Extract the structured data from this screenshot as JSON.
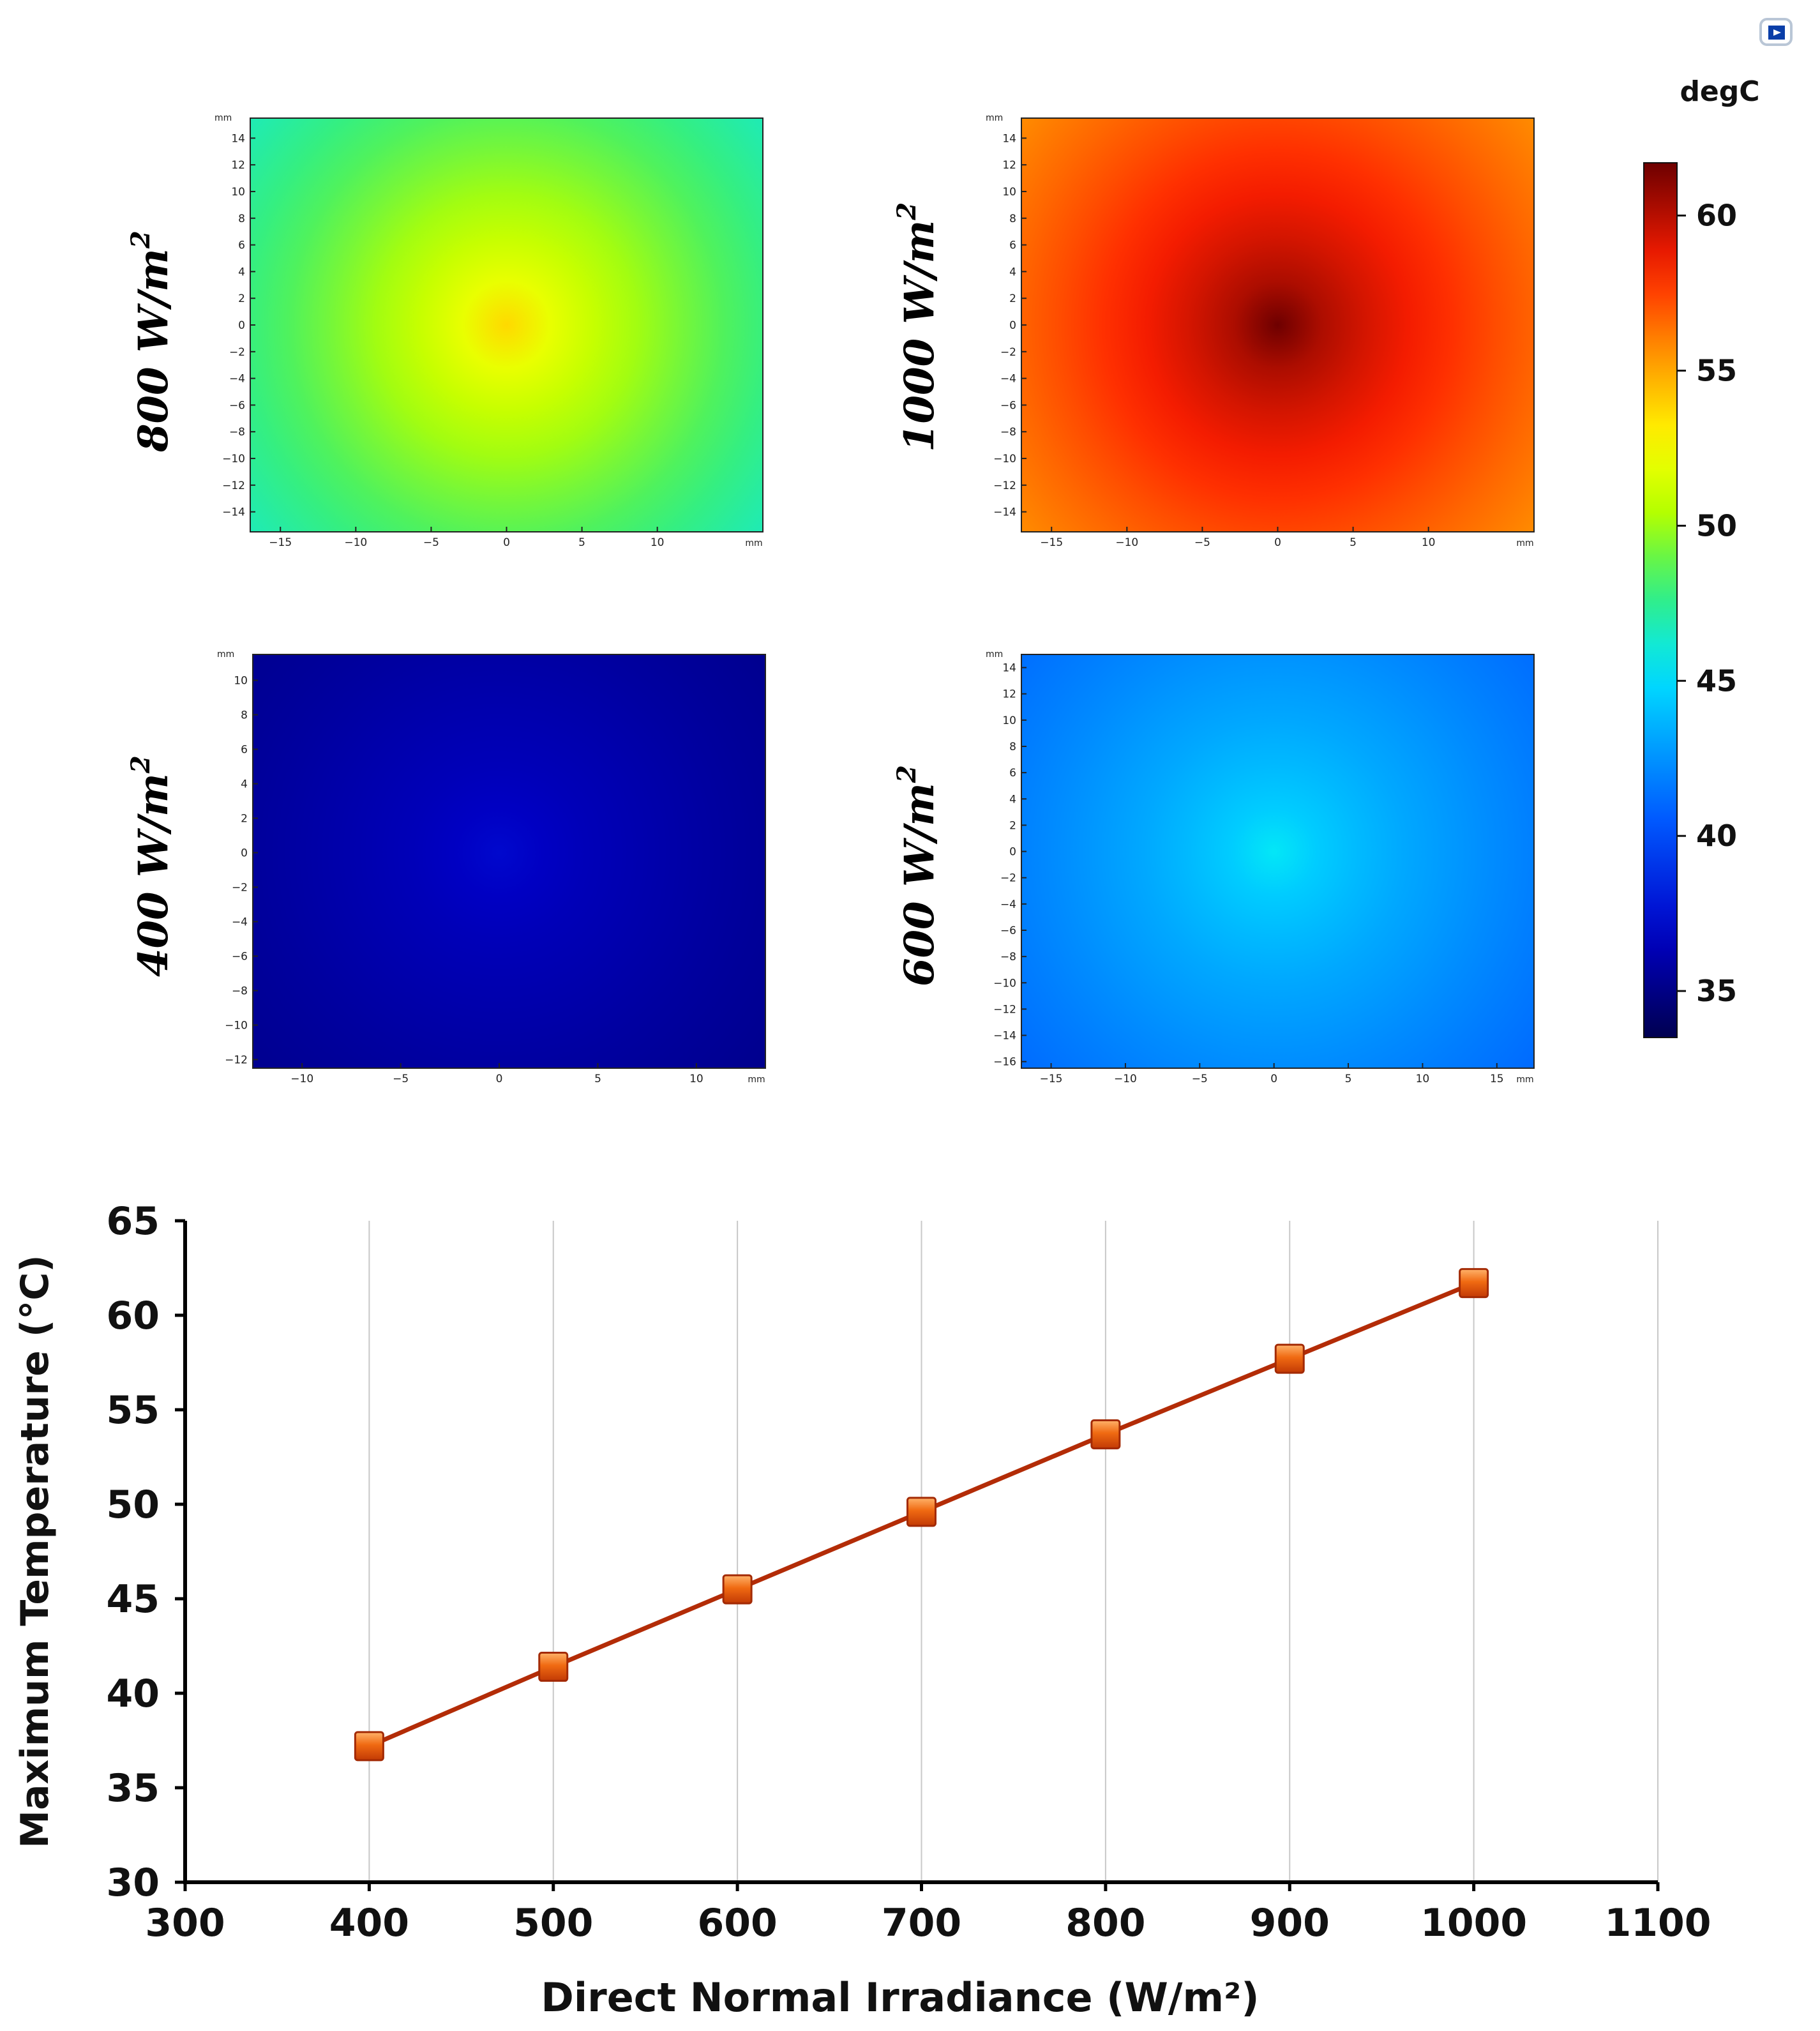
{
  "chart_data": [
    {
      "type": "heatmap",
      "label": "800 W/m²",
      "label_base": "800 W/m",
      "label_exp": "2",
      "unit": "mm",
      "xticks": [
        "−15",
        "−10",
        "−5",
        "0",
        "5",
        "10"
      ],
      "yticks": [
        "14",
        "12",
        "10",
        "8",
        "6",
        "4",
        "2",
        "0",
        "−2",
        "−4",
        "−6",
        "−8",
        "−10",
        "−12",
        "−14"
      ],
      "xrange": [
        -17,
        17
      ],
      "yrange": [
        -15.5,
        15.5
      ],
      "center_temperature": 53.7,
      "edge_temperature": 46.5
    },
    {
      "type": "heatmap",
      "label": "1000 W/m²",
      "label_base": "1000 W/m",
      "label_exp": "2",
      "unit": "mm",
      "xticks": [
        "−15",
        "−10",
        "−5",
        "0",
        "5",
        "10"
      ],
      "yticks": [
        "14",
        "12",
        "10",
        "8",
        "6",
        "4",
        "2",
        "0",
        "−2",
        "−4",
        "−6",
        "−8",
        "−10",
        "−12",
        "−14"
      ],
      "xrange": [
        -17,
        17
      ],
      "yrange": [
        -15.5,
        15.5
      ],
      "center_temperature": 61.7,
      "edge_temperature": 55.5
    },
    {
      "type": "heatmap",
      "label": "400 W/m²",
      "label_base": "400 W/m",
      "label_exp": "2",
      "unit": "mm",
      "xticks": [
        "−10",
        "−5",
        "0",
        "5",
        "10"
      ],
      "yticks": [
        "10",
        "8",
        "6",
        "4",
        "2",
        "0",
        "−2",
        "−4",
        "−6",
        "−8",
        "−10",
        "−12"
      ],
      "xrange": [
        -12.5,
        13.5
      ],
      "yrange": [
        -12.5,
        11.5
      ],
      "center_temperature": 37.2,
      "edge_temperature": 35.2
    },
    {
      "type": "heatmap",
      "label": "600 W/m²",
      "label_base": "600 W/m",
      "label_exp": "2",
      "unit": "mm",
      "xticks": [
        "−15",
        "−10",
        "−5",
        "0",
        "5",
        "10",
        "15"
      ],
      "yticks": [
        "14",
        "12",
        "10",
        "8",
        "6",
        "4",
        "2",
        "0",
        "−2",
        "−4",
        "−6",
        "−8",
        "−10",
        "−12",
        "−14",
        "−16"
      ],
      "xrange": [
        -17,
        17.5
      ],
      "yrange": [
        -16.5,
        15
      ],
      "center_temperature": 45.5,
      "edge_temperature": 41.0
    },
    {
      "type": "colorbar",
      "title": "degC",
      "range": [
        33.5,
        61.7
      ],
      "ticks": [
        "60",
        "55",
        "50",
        "45",
        "40",
        "35"
      ]
    },
    {
      "type": "line",
      "title": "",
      "xlabel": "Direct Normal Irradiance (W/m²)",
      "ylabel": "Maximum Temperature (°C)",
      "x": [
        400,
        500,
        600,
        700,
        800,
        900,
        1000
      ],
      "series": [
        {
          "name": "Maximum Temperature",
          "values": [
            37.2,
            41.4,
            45.5,
            49.6,
            53.7,
            57.7,
            61.7
          ]
        }
      ],
      "xlim": [
        300,
        1100
      ],
      "ylim": [
        30,
        65
      ],
      "xticks": [
        "300",
        "400",
        "500",
        "600",
        "700",
        "800",
        "900",
        "1000",
        "1100"
      ],
      "yticks": [
        "65",
        "60",
        "55",
        "50",
        "45",
        "40",
        "35",
        "30"
      ],
      "grid": "vertical",
      "line_color": "#b32c07",
      "marker_color": "#f06a12"
    }
  ]
}
